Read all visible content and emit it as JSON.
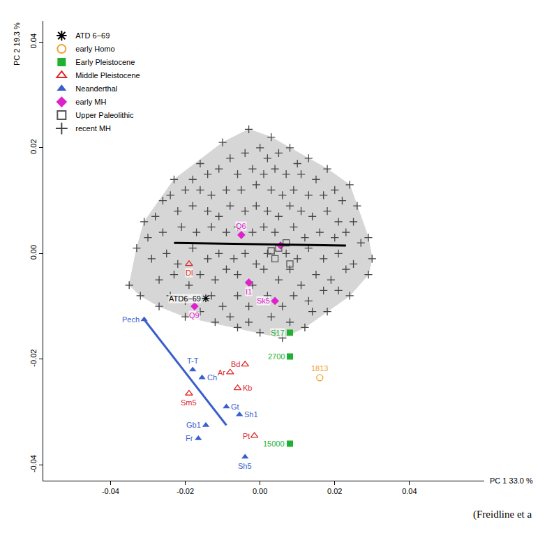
{
  "chart_data": {
    "type": "scatter",
    "x_label": "PC 1 33.0 %",
    "y_label": "PC 2 19.3 %",
    "caption": "(Freidline et a",
    "xlim": [
      -0.058,
      0.06
    ],
    "ylim": [
      -0.043,
      0.044
    ],
    "xticks": [
      {
        "value": -0.04,
        "label": "-0.04"
      },
      {
        "value": -0.02,
        "label": "-0.02"
      },
      {
        "value": 0,
        "label": "0.00"
      },
      {
        "value": 0.02,
        "label": "0.02"
      },
      {
        "value": 0.04,
        "label": "0.04"
      }
    ],
    "yticks": [
      {
        "value": -0.04,
        "label": "-0.04"
      },
      {
        "value": -0.02,
        "label": "-0.02"
      },
      {
        "value": 0,
        "label": "0.00"
      },
      {
        "value": 0.02,
        "label": "0.02"
      },
      {
        "value": 0.04,
        "label": "0.04"
      }
    ],
    "grid": false,
    "legend": "upper left",
    "series": [
      {
        "name": "ATD 6−69",
        "color": "#000000",
        "marker": "asterisk-open",
        "points": [
          [
            -0.0145,
            -0.0085
          ]
        ],
        "labels": [
          "ATD6−69"
        ]
      },
      {
        "name": "early Homo",
        "color": "#f0a030",
        "marker": "circle-open",
        "points": [
          [
            0.016,
            -0.0235
          ]
        ],
        "labels": [
          "1813"
        ]
      },
      {
        "name": "Early Pleistocene",
        "color": "#22b033",
        "marker": "square",
        "points": [
          [
            0.008,
            -0.015
          ],
          [
            0.008,
            -0.0195
          ],
          [
            0.008,
            -0.036
          ]
        ],
        "labels": [
          "S17",
          "2700",
          "15000"
        ]
      },
      {
        "name": "Middle Pleistocene",
        "color": "#e02828",
        "marker": "triangle-up-open",
        "points": [
          [
            -0.019,
            -0.002
          ],
          [
            -0.004,
            -0.021
          ],
          [
            -0.008,
            -0.0225
          ],
          [
            -0.006,
            -0.0255
          ],
          [
            -0.019,
            -0.0265
          ],
          [
            -0.0015,
            -0.0345
          ]
        ],
        "labels": [
          "Dl",
          "Bd",
          "Ar",
          "Kb",
          "Sm5",
          "Pt"
        ]
      },
      {
        "name": "Neanderthal",
        "color": "#3a5fcd",
        "marker": "triangle-up",
        "points": [
          [
            -0.031,
            -0.0125
          ],
          [
            -0.018,
            -0.022
          ],
          [
            -0.0155,
            -0.0235
          ],
          [
            -0.009,
            -0.029
          ],
          [
            -0.0055,
            -0.0305
          ],
          [
            -0.0145,
            -0.0325
          ],
          [
            -0.0165,
            -0.035
          ],
          [
            -0.004,
            -0.0385
          ]
        ],
        "labels": [
          "Pech",
          "T-T",
          "Ch",
          "Gt",
          "Sh1",
          "Gb1",
          "Fr",
          "Sh5"
        ],
        "trend": {
          "color": "#3a5fcd",
          "x": [
            -0.031,
            -0.009
          ],
          "y": [
            -0.0125,
            -0.0325
          ]
        }
      },
      {
        "name": "early MH",
        "color": "#dd22cc",
        "marker": "diamond",
        "points": [
          [
            -0.005,
            0.0035
          ],
          [
            -0.0175,
            -0.01
          ],
          [
            -0.003,
            -0.0055
          ],
          [
            0.004,
            -0.009
          ],
          [
            0.0055,
            0.0015
          ]
        ],
        "labels": [
          "Q6",
          "Q9",
          "I1",
          "Sk5",
          null
        ]
      },
      {
        "name": "Upper Paleolithic",
        "color": "#555555",
        "marker": "square-open",
        "points": [
          [
            0.005,
            0.001
          ],
          [
            0.004,
            -0.001
          ],
          [
            0.007,
            0.002
          ],
          [
            0.008,
            -0.002
          ],
          [
            0.003,
            0.0005
          ]
        ]
      },
      {
        "name": "recent MH",
        "color": "#444444",
        "marker": "cross-thin-open",
        "trend": {
          "color": "#000000",
          "x": [
            -0.023,
            0.023
          ],
          "y": [
            0.002,
            0.0015
          ]
        },
        "points": [
          [
            -0.035,
            -0.006
          ],
          [
            -0.033,
            0.001
          ],
          [
            -0.031,
            0.006
          ],
          [
            -0.026,
            0.01
          ],
          [
            -0.023,
            0.014
          ],
          [
            -0.016,
            0.017
          ],
          [
            -0.01,
            0.021
          ],
          [
            -0.003,
            0.0235
          ],
          [
            0.003,
            0.022
          ],
          [
            0.008,
            0.02
          ],
          [
            0.013,
            0.018
          ],
          [
            0.018,
            0.016
          ],
          [
            0.024,
            0.013
          ],
          [
            0.026,
            0.009
          ],
          [
            0.029,
            0.003
          ],
          [
            0.03,
            -0.001
          ],
          [
            0.029,
            -0.004
          ],
          [
            0.024,
            -0.008
          ],
          [
            0.018,
            -0.011
          ],
          [
            0.012,
            -0.014
          ],
          [
            0.006,
            -0.016
          ],
          [
            0.0,
            -0.015
          ],
          [
            -0.006,
            -0.014
          ],
          [
            -0.012,
            -0.013
          ],
          [
            -0.02,
            -0.012
          ],
          [
            -0.027,
            -0.01
          ],
          [
            -0.032,
            -0.008
          ],
          [
            -0.008,
            0.018
          ],
          [
            -0.004,
            0.019
          ],
          [
            0.0,
            0.02
          ],
          [
            0.002,
            0.018
          ],
          [
            0.005,
            0.019
          ],
          [
            0.01,
            0.017
          ],
          [
            -0.018,
            0.014
          ],
          [
            -0.014,
            0.015
          ],
          [
            -0.011,
            0.016
          ],
          [
            -0.006,
            0.015
          ],
          [
            -0.002,
            0.016
          ],
          [
            0.001,
            0.015
          ],
          [
            0.004,
            0.016
          ],
          [
            0.007,
            0.015
          ],
          [
            0.011,
            0.015
          ],
          [
            0.015,
            0.014
          ],
          [
            0.02,
            0.012
          ],
          [
            -0.024,
            0.011
          ],
          [
            -0.02,
            0.012
          ],
          [
            -0.016,
            0.012
          ],
          [
            -0.013,
            0.011
          ],
          [
            -0.009,
            0.012
          ],
          [
            -0.005,
            0.012
          ],
          [
            -0.001,
            0.013
          ],
          [
            0.003,
            0.012
          ],
          [
            0.006,
            0.011
          ],
          [
            0.009,
            0.012
          ],
          [
            0.013,
            0.011
          ],
          [
            0.017,
            0.011
          ],
          [
            0.022,
            0.01
          ],
          [
            -0.028,
            0.007
          ],
          [
            -0.022,
            0.008
          ],
          [
            -0.018,
            0.009
          ],
          [
            -0.014,
            0.008
          ],
          [
            -0.011,
            0.007
          ],
          [
            -0.008,
            0.009
          ],
          [
            -0.004,
            0.008
          ],
          [
            -0.001,
            0.009
          ],
          [
            0.002,
            0.008
          ],
          [
            0.005,
            0.007
          ],
          [
            0.008,
            0.009
          ],
          [
            0.011,
            0.008
          ],
          [
            0.014,
            0.007
          ],
          [
            0.018,
            0.008
          ],
          [
            0.021,
            0.006
          ],
          [
            0.025,
            0.006
          ],
          [
            -0.03,
            0.003
          ],
          [
            -0.026,
            0.004
          ],
          [
            -0.021,
            0.005
          ],
          [
            -0.017,
            0.004
          ],
          [
            -0.013,
            0.005
          ],
          [
            -0.009,
            0.004
          ],
          [
            -0.006,
            0.005
          ],
          [
            -0.002,
            0.004
          ],
          [
            0.001,
            0.005
          ],
          [
            0.004,
            0.004
          ],
          [
            0.009,
            0.005
          ],
          [
            0.012,
            0.003
          ],
          [
            0.016,
            0.004
          ],
          [
            0.02,
            0.003
          ],
          [
            0.023,
            0.004
          ],
          [
            0.027,
            0.002
          ],
          [
            -0.029,
            -0.001
          ],
          [
            -0.025,
            0.0
          ],
          [
            -0.022,
            -0.002
          ],
          [
            -0.018,
            0.001
          ],
          [
            -0.014,
            -0.001
          ],
          [
            -0.011,
            0.0
          ],
          [
            -0.007,
            -0.001
          ],
          [
            -0.004,
            0.0
          ],
          [
            -0.001,
            -0.002
          ],
          [
            0.002,
            0.0
          ],
          [
            0.007,
            0.0
          ],
          [
            0.01,
            -0.001
          ],
          [
            0.013,
            0.001
          ],
          [
            0.017,
            -0.001
          ],
          [
            0.021,
            0.0
          ],
          [
            0.025,
            -0.002
          ],
          [
            -0.027,
            -0.005
          ],
          [
            -0.023,
            -0.004
          ],
          [
            -0.019,
            -0.006
          ],
          [
            -0.016,
            -0.004
          ],
          [
            -0.012,
            -0.005
          ],
          [
            -0.009,
            -0.003
          ],
          [
            -0.006,
            -0.004
          ],
          [
            -0.002,
            -0.006
          ],
          [
            0.001,
            -0.003
          ],
          [
            0.005,
            -0.005
          ],
          [
            0.008,
            -0.003
          ],
          [
            0.011,
            -0.006
          ],
          [
            0.015,
            -0.004
          ],
          [
            0.019,
            -0.005
          ],
          [
            0.023,
            -0.003
          ],
          [
            -0.024,
            -0.008
          ],
          [
            -0.02,
            -0.009
          ],
          [
            -0.013,
            -0.008
          ],
          [
            -0.01,
            -0.01
          ],
          [
            -0.006,
            -0.008
          ],
          [
            -0.003,
            -0.01
          ],
          [
            0.002,
            -0.008
          ],
          [
            0.006,
            -0.01
          ],
          [
            0.009,
            -0.008
          ],
          [
            0.013,
            -0.009
          ],
          [
            0.017,
            -0.007
          ],
          [
            0.021,
            -0.007
          ],
          [
            -0.016,
            -0.011
          ],
          [
            -0.008,
            -0.012
          ],
          [
            -0.003,
            -0.013
          ],
          [
            0.003,
            -0.012
          ],
          [
            0.008,
            -0.013
          ],
          [
            0.014,
            -0.011
          ],
          [
            0.004,
            -0.015
          ]
        ]
      }
    ]
  }
}
